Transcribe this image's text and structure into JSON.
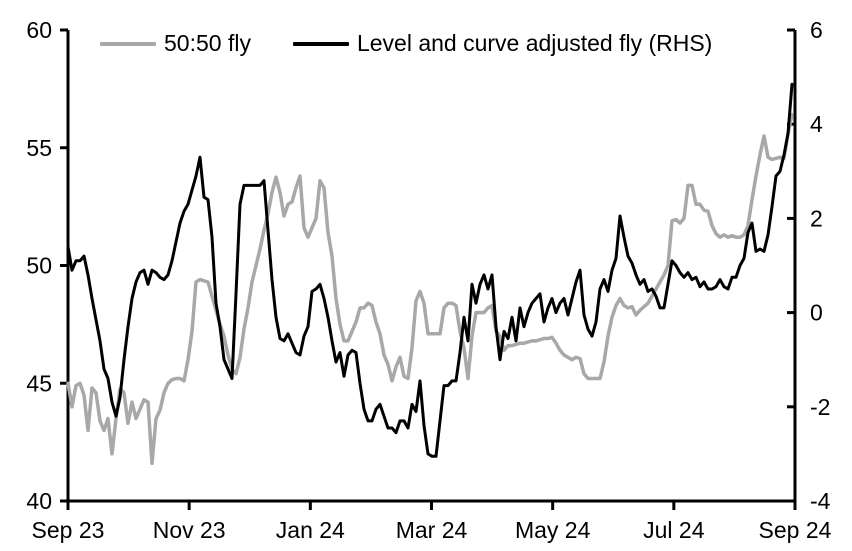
{
  "legend": [
    {
      "label": "50:50 fly",
      "color": "#a8a8a8"
    },
    {
      "label": "Level and curve adjusted fly (RHS)",
      "color": "#000000"
    }
  ],
  "chart_data": {
    "type": "line",
    "title": "",
    "xlabel": "",
    "ylabel_left": "",
    "ylabel_right": "",
    "x_tick_labels": [
      "Sep 23",
      "Nov 23",
      "Jan 24",
      "Mar 24",
      "May 24",
      "Jul 24",
      "Sep 24"
    ],
    "left_axis": {
      "ticks": [
        40,
        45,
        50,
        55,
        60
      ],
      "range": [
        40,
        60
      ]
    },
    "right_axis": {
      "ticks": [
        -4,
        -2,
        0,
        2,
        4,
        6
      ],
      "range": [
        -4,
        6
      ]
    },
    "grid": "off",
    "legend_position": "top-inside",
    "series": [
      {
        "name": "50:50 fly",
        "axis": "left",
        "color": "#a8a8a8",
        "width": 3.5,
        "values": [
          45.0,
          44.0,
          44.9,
          45.0,
          44.5,
          43.0,
          44.8,
          44.6,
          43.4,
          43.0,
          43.5,
          42.0,
          43.5,
          44.75,
          44.6,
          43.3,
          44.2,
          43.5,
          43.9,
          44.3,
          44.2,
          41.6,
          43.5,
          43.85,
          44.6,
          45.0,
          45.15,
          45.2,
          45.2,
          45.1,
          46.0,
          47.2,
          49.3,
          49.4,
          49.35,
          49.3,
          48.7,
          48.1,
          47.5,
          47.0,
          46.2,
          45.6,
          45.4,
          46.1,
          47.3,
          48.2,
          49.3,
          50.0,
          50.7,
          51.5,
          52.2,
          53.1,
          53.75,
          53.1,
          52.1,
          52.6,
          52.7,
          53.3,
          53.8,
          51.6,
          51.2,
          51.6,
          52.0,
          53.6,
          53.3,
          51.4,
          50.4,
          48.6,
          47.5,
          46.8,
          46.8,
          47.2,
          47.6,
          48.2,
          48.2,
          48.4,
          48.3,
          47.6,
          47.1,
          46.2,
          45.8,
          45.1,
          45.7,
          46.1,
          45.3,
          45.2,
          46.5,
          48.5,
          48.9,
          48.4,
          47.1,
          47.1,
          47.1,
          47.1,
          48.2,
          48.4,
          48.4,
          48.3,
          47.2,
          46.5,
          45.2,
          47.0,
          48.0,
          48.0,
          48.0,
          48.2,
          48.3,
          47.2,
          47.0,
          46.4,
          46.6,
          46.6,
          46.65,
          46.7,
          46.7,
          46.75,
          46.8,
          46.8,
          46.85,
          46.9,
          46.9,
          46.95,
          46.7,
          46.4,
          46.2,
          46.1,
          46.0,
          46.1,
          46.05,
          45.4,
          45.2,
          45.2,
          45.2,
          45.2,
          45.9,
          47.0,
          47.8,
          48.3,
          48.6,
          48.3,
          48.2,
          48.25,
          47.9,
          48.1,
          48.25,
          48.4,
          48.7,
          49.0,
          49.3,
          49.6,
          50.0,
          51.9,
          51.95,
          51.8,
          52.0,
          53.4,
          53.4,
          52.6,
          52.6,
          52.35,
          52.3,
          51.7,
          51.35,
          51.2,
          51.3,
          51.2,
          51.27,
          51.2,
          51.2,
          51.3,
          51.7,
          52.8,
          53.8,
          54.7,
          55.5,
          54.6,
          54.5,
          54.55,
          54.6,
          54.55,
          55.6,
          56.4
        ]
      },
      {
        "name": "Level and curve adjusted fly (RHS)",
        "axis": "right",
        "color": "#000000",
        "width": 3,
        "values": [
          1.4,
          0.9,
          1.1,
          1.1,
          1.2,
          0.8,
          0.3,
          -0.15,
          -0.6,
          -1.2,
          -1.4,
          -1.9,
          -2.2,
          -1.8,
          -1.0,
          -0.3,
          0.3,
          0.65,
          0.85,
          0.9,
          0.6,
          0.9,
          0.85,
          0.75,
          0.7,
          0.8,
          1.1,
          1.5,
          1.9,
          2.15,
          2.3,
          2.6,
          2.9,
          3.3,
          2.45,
          2.4,
          1.6,
          0.2,
          -0.3,
          -1.0,
          -1.2,
          -1.4,
          0.4,
          2.3,
          2.7,
          2.7,
          2.7,
          2.7,
          2.7,
          2.8,
          1.75,
          0.7,
          -0.1,
          -0.55,
          -0.6,
          -0.45,
          -0.65,
          -0.85,
          -0.9,
          -0.5,
          -0.3,
          0.45,
          0.5,
          0.6,
          0.3,
          -0.1,
          -0.6,
          -1.05,
          -0.85,
          -1.35,
          -0.9,
          -0.8,
          -0.85,
          -1.5,
          -2.05,
          -2.3,
          -2.3,
          -2.05,
          -1.95,
          -2.2,
          -2.45,
          -2.45,
          -2.55,
          -2.3,
          -2.3,
          -2.45,
          -1.95,
          -2.1,
          -1.45,
          -2.4,
          -3.0,
          -3.05,
          -3.05,
          -2.3,
          -1.55,
          -1.55,
          -1.45,
          -1.45,
          -0.85,
          -0.1,
          -0.6,
          0.6,
          0.2,
          0.6,
          0.8,
          0.5,
          0.8,
          -0.3,
          -1.0,
          -0.4,
          -0.55,
          -0.1,
          -0.6,
          0.1,
          -0.3,
          0.0,
          0.2,
          0.3,
          0.4,
          -0.2,
          0.1,
          0.3,
          0.0,
          0.2,
          0.3,
          -0.05,
          0.3,
          0.65,
          0.9,
          -0.05,
          -0.35,
          -0.5,
          -0.2,
          0.5,
          0.7,
          0.45,
          0.9,
          1.15,
          2.05,
          1.6,
          1.2,
          1.05,
          0.8,
          0.6,
          0.7,
          0.45,
          0.5,
          0.35,
          0.1,
          0.1,
          0.6,
          1.1,
          1.0,
          0.85,
          0.75,
          0.85,
          0.7,
          0.75,
          0.55,
          0.65,
          0.5,
          0.5,
          0.55,
          0.7,
          0.55,
          0.5,
          0.75,
          0.75,
          1.0,
          1.15,
          1.7,
          1.9,
          1.3,
          1.35,
          1.3,
          1.65,
          2.25,
          2.9,
          3.0,
          3.35,
          3.8,
          4.85
        ]
      }
    ]
  }
}
